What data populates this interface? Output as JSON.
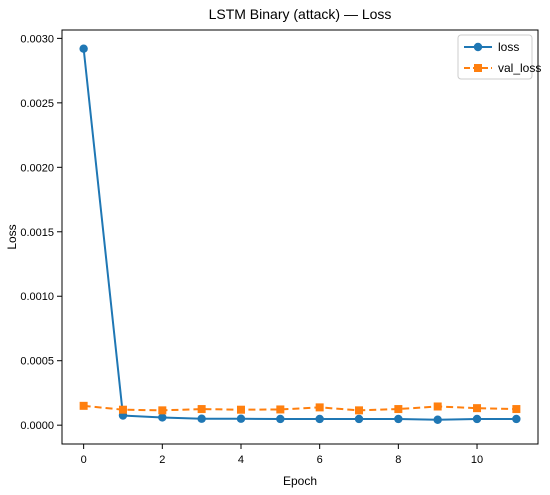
{
  "chart_data": {
    "type": "line",
    "title": "LSTM Binary (attack) — Loss",
    "xlabel": "Epoch",
    "ylabel": "Loss",
    "xlim": [
      -0.55,
      11.55
    ],
    "ylim": [
      -0.000146,
      0.003065
    ],
    "x_ticks": [
      0,
      2,
      4,
      6,
      8,
      10
    ],
    "x_tick_labels": [
      "0",
      "2",
      "4",
      "6",
      "8",
      "10"
    ],
    "y_ticks": [
      0.0,
      0.0005,
      0.001,
      0.0015,
      0.002,
      0.0025,
      0.003
    ],
    "y_tick_labels": [
      "0.0000",
      "0.0005",
      "0.0010",
      "0.0015",
      "0.0020",
      "0.0025",
      "0.0030"
    ],
    "grid": false,
    "legend_position": "top-right",
    "x": [
      0,
      1,
      2,
      3,
      4,
      5,
      6,
      7,
      8,
      9,
      10,
      11
    ],
    "series": [
      {
        "name": "loss",
        "color": "#1f77b4",
        "line_style": "solid",
        "marker": "circle",
        "values": [
          0.00292,
          7.5e-05,
          6e-05,
          5e-05,
          5e-05,
          4.8e-05,
          4.8e-05,
          4.8e-05,
          4.8e-05,
          4.2e-05,
          4.8e-05,
          4.8e-05
        ]
      },
      {
        "name": "val_loss",
        "color": "#ff7f0e",
        "line_style": "dashed",
        "marker": "square",
        "values": [
          0.00015,
          0.00012,
          0.000115,
          0.000125,
          0.00012,
          0.000122,
          0.000138,
          0.000115,
          0.000125,
          0.000145,
          0.000132,
          0.000125
        ]
      }
    ]
  }
}
